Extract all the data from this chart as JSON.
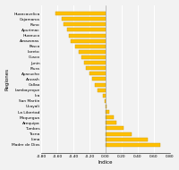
{
  "regions": [
    "Madre de Dios",
    "Lima",
    "Tacna",
    "Tumbes",
    "Arequipa",
    "Moquegua",
    "La Libertad",
    "Ucayali",
    "San Martin",
    "Ica",
    "Lambayeque",
    "Callao",
    "Ancash",
    "Ayacucho",
    "Piura",
    "Junin",
    "Cusco",
    "Loreto",
    "Pasco",
    "Amazonas",
    "Huanuco",
    "Apurimac",
    "Puno",
    "Cajamarca",
    "Huancavelica"
  ],
  "values": [
    0.68,
    0.52,
    0.32,
    0.22,
    0.14,
    0.1,
    0.05,
    0.01,
    -0.01,
    -0.03,
    -0.1,
    -0.13,
    -0.17,
    -0.2,
    -0.24,
    -0.27,
    -0.3,
    -0.33,
    -0.38,
    -0.43,
    -0.45,
    -0.48,
    -0.52,
    -0.55,
    -0.62
  ],
  "bar_color": "#FFC000",
  "bar_edge_color": "#CC9900",
  "xlabel": "Indice",
  "ylabel": "Regiones",
  "xlim": [
    -0.8,
    0.8
  ],
  "xticks": [
    -0.8,
    -0.6,
    -0.4,
    -0.2,
    0.0,
    0.2,
    0.4,
    0.6,
    0.8
  ],
  "bg_color": "#F2F2F2",
  "grid_color": "#FFFFFF",
  "bar_height": 0.65
}
